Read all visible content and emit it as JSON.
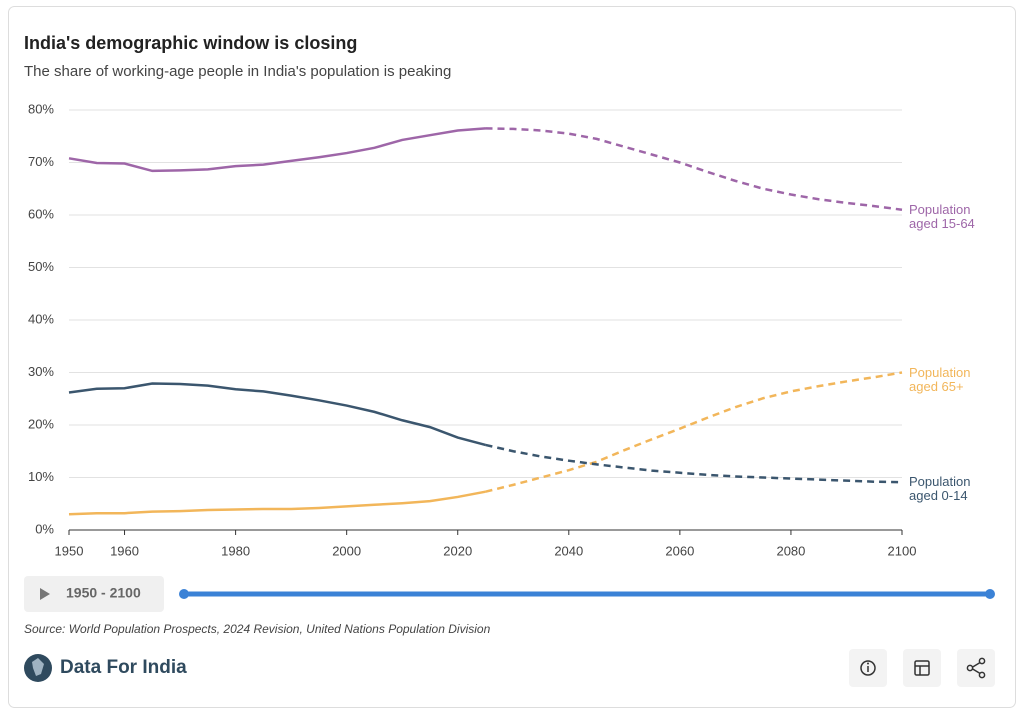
{
  "chart_data": {
    "type": "line",
    "title": "India's demographic window is closing",
    "subtitle": "The share of working-age people in India's population is peaking",
    "x": [
      1950,
      1955,
      1960,
      1965,
      1970,
      1975,
      1980,
      1985,
      1990,
      1995,
      2000,
      2005,
      2010,
      2015,
      2020,
      2025,
      2030,
      2035,
      2040,
      2045,
      2050,
      2055,
      2060,
      2065,
      2070,
      2075,
      2080,
      2085,
      2090,
      2095,
      2100
    ],
    "projection_from": 2025,
    "series": [
      {
        "name": "Population aged 15-64",
        "color": "#9e66a8",
        "values": [
          70.8,
          69.9,
          69.8,
          68.4,
          68.5,
          68.7,
          69.3,
          69.6,
          70.3,
          71.0,
          71.8,
          72.8,
          74.3,
          75.2,
          76.1,
          76.5,
          76.4,
          76.1,
          75.5,
          74.5,
          73.0,
          71.5,
          70.0,
          68.2,
          66.5,
          65.0,
          63.9,
          63.0,
          62.3,
          61.7,
          61.0
        ]
      },
      {
        "name": "Population aged 65+",
        "color": "#f2b65a",
        "values": [
          3.0,
          3.2,
          3.2,
          3.5,
          3.6,
          3.8,
          3.9,
          4.0,
          4.0,
          4.2,
          4.5,
          4.8,
          5.1,
          5.5,
          6.3,
          7.3,
          8.6,
          10.0,
          11.4,
          13.0,
          15.2,
          17.3,
          19.3,
          21.4,
          23.4,
          25.1,
          26.4,
          27.4,
          28.3,
          29.1,
          30.0
        ]
      },
      {
        "name": "Population aged 0-14",
        "color": "#3b566e",
        "values": [
          26.2,
          26.9,
          27.0,
          27.9,
          27.8,
          27.5,
          26.8,
          26.4,
          25.6,
          24.7,
          23.7,
          22.5,
          20.9,
          19.6,
          17.6,
          16.2,
          15.0,
          14.0,
          13.2,
          12.5,
          11.9,
          11.3,
          10.9,
          10.5,
          10.2,
          10.0,
          9.8,
          9.6,
          9.4,
          9.2,
          9.1
        ]
      }
    ],
    "xlim": [
      1950,
      2100
    ],
    "xticks": [
      1950,
      1960,
      1980,
      2000,
      2020,
      2040,
      2060,
      2080,
      2100
    ],
    "ylim": [
      0,
      80
    ],
    "yticks": [
      {
        "value": 0,
        "label": "0%"
      },
      {
        "value": 10,
        "label": "10%"
      },
      {
        "value": 20,
        "label": "20%"
      },
      {
        "value": 30,
        "label": "30%"
      },
      {
        "value": 40,
        "label": "40%"
      },
      {
        "value": 50,
        "label": "50%"
      },
      {
        "value": 60,
        "label": "60%"
      },
      {
        "value": 70,
        "label": "70%"
      },
      {
        "value": 80,
        "label": "80%"
      }
    ],
    "grid": true,
    "range_label": "1950 - 2100",
    "source": "Source: World Population Prospects, 2024 Revision, United Nations Population Division",
    "brand": "Data For India"
  }
}
